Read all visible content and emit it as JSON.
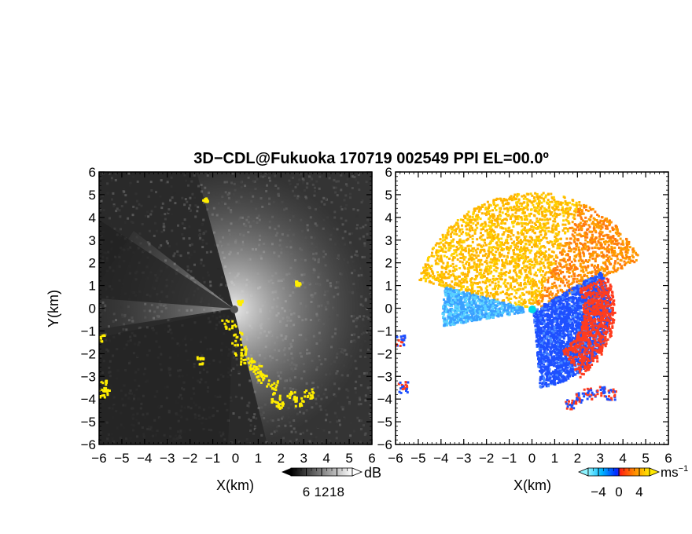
{
  "title": "3D−CDL@Fukuoka 170719 002549 PPI EL=00.0º",
  "chart_data": [
    {
      "type": "heatmap",
      "panel": "power",
      "xlabel": "X(km)",
      "ylabel": "Y(km)",
      "xlim": [
        -6,
        6
      ],
      "ylim": [
        -6,
        6
      ],
      "xticks": [
        "−6",
        "−5",
        "−4",
        "−3",
        "−2",
        "−1",
        "0",
        "1",
        "2",
        "3",
        "4",
        "5",
        "6"
      ],
      "yticks": [
        "−6",
        "−5",
        "−4",
        "−3",
        "−2",
        "−1",
        "0",
        "1",
        "2",
        "3",
        "4",
        "5",
        "6"
      ],
      "colorbar": {
        "unit": "dB",
        "ticks": [
          "6",
          "12",
          "18"
        ],
        "range": [
          0,
          24
        ]
      },
      "colors": {
        "background": "#2b2b2b",
        "bright": "#f0f0f0",
        "highlight": "#ffee00"
      }
    },
    {
      "type": "heatmap",
      "panel": "velocity",
      "xlabel": "X(km)",
      "ylabel": "",
      "xlim": [
        -6,
        6
      ],
      "ylim": [
        -6,
        6
      ],
      "xticks": [
        "−6",
        "−5",
        "−4",
        "−3",
        "−2",
        "−1",
        "0",
        "1",
        "2",
        "3",
        "4",
        "5",
        "6"
      ],
      "yticks": [
        "−6",
        "−5",
        "−4",
        "−3",
        "−2",
        "−1",
        "0",
        "1",
        "2",
        "3",
        "4",
        "5",
        "6"
      ],
      "colorbar": {
        "unit": "ms",
        "unit_exp": "−1",
        "ticks": [
          "−4",
          "0",
          "4"
        ],
        "range": [
          -6,
          6
        ]
      },
      "colors": {
        "negative": "#1e50ff",
        "weak_negative": "#5ad2ff",
        "positive": "#ff3c1e",
        "weak_positive": "#ffd200",
        "origin": "#00d8e8"
      }
    }
  ]
}
